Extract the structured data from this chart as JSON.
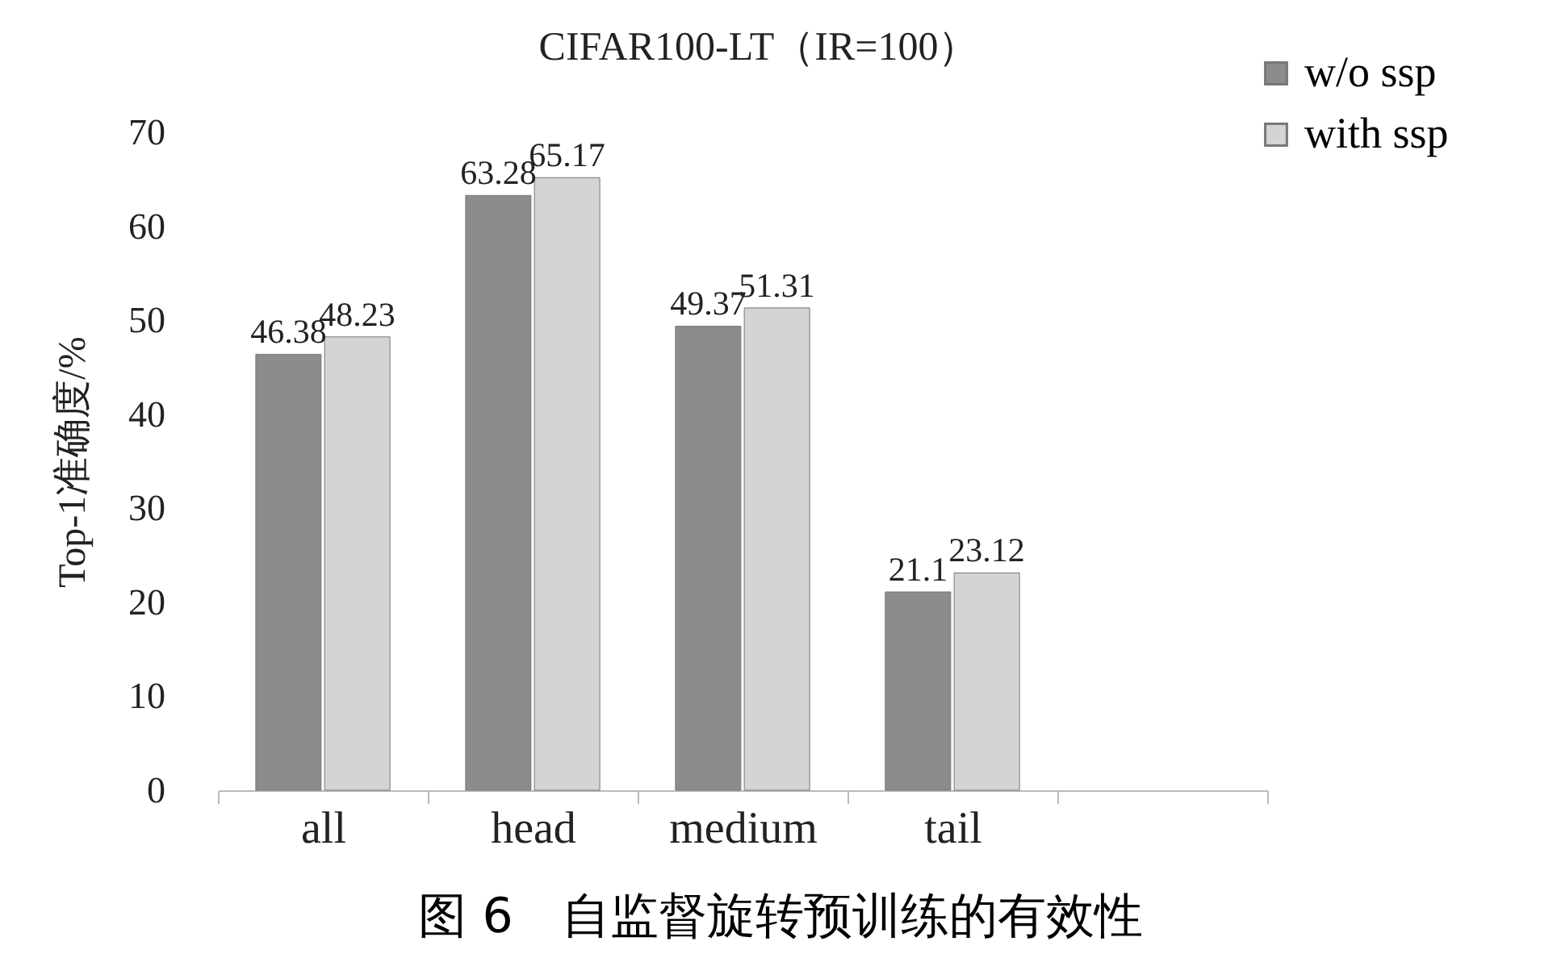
{
  "chart_data": {
    "type": "bar",
    "title": "CIFAR100-LT（IR=100）",
    "ylabel": "Top-1准确度/%",
    "categories": [
      "all",
      "head",
      "medium",
      "tail",
      null
    ],
    "series": [
      {
        "name": "w/o ssp",
        "color": "#8c8c8c",
        "values": [
          46.38,
          63.28,
          49.37,
          21.1,
          null
        ]
      },
      {
        "name": "with ssp",
        "color": "#d4d4d4",
        "values": [
          48.23,
          65.17,
          51.31,
          23.12,
          null
        ]
      }
    ],
    "ylim": [
      0,
      70
    ],
    "yticks": [
      0,
      10,
      20,
      30,
      40,
      50,
      60,
      70
    ],
    "grid": false,
    "legend": "top right",
    "data_labels": true,
    "annotations": [
      "图 6　自监督旋转预训练的有效性"
    ]
  }
}
